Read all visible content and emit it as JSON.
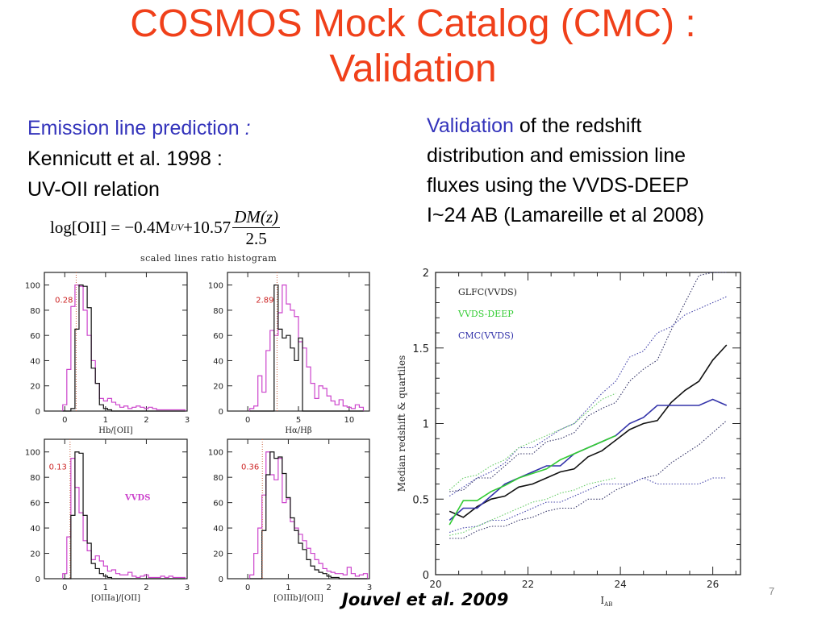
{
  "title": {
    "line1": "COSMOS Mock Catalog (CMC) :",
    "line2": "Validation"
  },
  "left_text": {
    "heading": "Emission line prediction",
    "heading_colon": " :",
    "line2": "Kennicutt et al. 1998 :",
    "line3": "UV-OII relation"
  },
  "formula": {
    "lhs": "log[OII] = −0.4M",
    "sub": "UV",
    "mid": " +10.57",
    "numerator": "DM(z)",
    "denominator": "2.5"
  },
  "right_text": {
    "highlight": "Validation",
    "line1_rest": " of the redshift",
    "line2": "distribution and emission line",
    "line3": "fluxes using the VVDS-DEEP",
    "line4": "I~24 AB (Lamareille et al 2008)"
  },
  "histogram_title": "scaled lines ratio histogram",
  "citation": "Jouvel et al. 2009",
  "page_number": "7",
  "colors": {
    "title": "#f0401a",
    "accent_blue": "#3333bb",
    "vvds_magenta": "#cc44cc",
    "cmc_black": "#111111",
    "ratio_label": "#cc2222",
    "green": "#33cc33",
    "blue": "#3333aa"
  },
  "chart_data": [
    {
      "type": "bar",
      "title": "",
      "xlabel": "Hb/[OII]",
      "ylabel": "",
      "xlim": [
        -0.5,
        3
      ],
      "ylim": [
        0,
        110
      ],
      "xticks": [
        "0",
        "1",
        "2",
        "3"
      ],
      "yticks": [
        "0",
        "20",
        "40",
        "60",
        "80",
        "100"
      ],
      "annotation": "0.28",
      "marker_x": 0.28,
      "bin_width": 0.1,
      "x": [
        0.0,
        0.1,
        0.2,
        0.3,
        0.4,
        0.5,
        0.6,
        0.7,
        0.8,
        0.9,
        1.0,
        1.1,
        1.2,
        1.3,
        1.4,
        1.5,
        1.6,
        1.7,
        1.8,
        1.9,
        2.0,
        2.1,
        2.2,
        2.3,
        2.4,
        2.5,
        2.6,
        2.7,
        2.8,
        2.9
      ],
      "series": [
        {
          "name": "VVDS",
          "values": [
            5,
            33,
            83,
            100,
            99,
            80,
            60,
            40,
            22,
            10,
            8,
            10,
            7,
            5,
            3,
            4,
            2,
            3,
            4,
            3,
            2,
            3,
            2,
            1,
            1,
            1,
            1,
            1,
            1,
            1
          ]
        },
        {
          "name": "CMC",
          "values": [
            0,
            0,
            2,
            65,
            100,
            99,
            82,
            34,
            22,
            5,
            2,
            1,
            0,
            0,
            0,
            0,
            0,
            0,
            0,
            0,
            0,
            0,
            0,
            0,
            0,
            0,
            0,
            0,
            0,
            0
          ]
        }
      ]
    },
    {
      "type": "bar",
      "title": "",
      "xlabel": "Hα/Hβ",
      "ylabel": "",
      "xlim": [
        -2,
        12
      ],
      "ylim": [
        0,
        110
      ],
      "xticks": [
        "0",
        "5",
        "10"
      ],
      "yticks": [
        "0",
        "20",
        "40",
        "60",
        "80",
        "100"
      ],
      "annotation": "2.89",
      "marker_x": 2.89,
      "bin_width": 0.4,
      "x": [
        0.4,
        0.8,
        1.2,
        1.6,
        2.0,
        2.4,
        2.8,
        3.2,
        3.6,
        4.0,
        4.4,
        4.8,
        5.2,
        5.6,
        6.0,
        6.4,
        6.8,
        7.2,
        7.6,
        8.0,
        8.4,
        8.8,
        9.2,
        9.6,
        10.0,
        10.4,
        10.8,
        11.2
      ],
      "series": [
        {
          "name": "VVDS",
          "values": [
            2,
            4,
            28,
            15,
            48,
            64,
            60,
            78,
            100,
            85,
            80,
            75,
            55,
            50,
            35,
            22,
            10,
            20,
            18,
            12,
            8,
            5,
            9,
            4,
            3,
            2,
            5,
            3
          ]
        },
        {
          "name": "CMC",
          "values": [
            0,
            0,
            0,
            0,
            0,
            0,
            100,
            65,
            58,
            60,
            50,
            40,
            58,
            0,
            0,
            0,
            0,
            0,
            0,
            0,
            0,
            0,
            0,
            0,
            0,
            0,
            0,
            0
          ]
        }
      ]
    },
    {
      "type": "bar",
      "title": "",
      "xlabel": "[OIIIa]/[OII]",
      "ylabel": "",
      "xlim": [
        -0.5,
        3
      ],
      "ylim": [
        0,
        110
      ],
      "xticks": [
        "0",
        "1",
        "2",
        "3"
      ],
      "yticks": [
        "0",
        "20",
        "40",
        "60",
        "80",
        "100"
      ],
      "annotation": "0.13",
      "legend_label": "VVDS",
      "marker_x": 0.13,
      "bin_width": 0.1,
      "x": [
        0.0,
        0.1,
        0.2,
        0.3,
        0.4,
        0.5,
        0.6,
        0.7,
        0.8,
        0.9,
        1.0,
        1.1,
        1.2,
        1.3,
        1.4,
        1.5,
        1.6,
        1.7,
        1.8,
        1.9,
        2.0,
        2.1,
        2.2,
        2.3,
        2.4,
        2.5,
        2.6,
        2.7,
        2.8,
        2.9
      ],
      "series": [
        {
          "name": "VVDS",
          "values": [
            4,
            33,
            95,
            72,
            52,
            30,
            22,
            15,
            18,
            14,
            10,
            6,
            7,
            4,
            3,
            3,
            5,
            2,
            1,
            2,
            3,
            1,
            1,
            1,
            2,
            1,
            2,
            1,
            1,
            1
          ]
        },
        {
          "name": "CMC",
          "values": [
            0,
            0,
            50,
            100,
            99,
            50,
            28,
            12,
            8,
            4,
            2,
            1,
            0,
            0,
            0,
            0,
            0,
            0,
            0,
            0,
            0,
            0,
            0,
            0,
            0,
            0,
            0,
            0,
            0,
            0
          ]
        }
      ]
    },
    {
      "type": "bar",
      "title": "",
      "xlabel": "[OIIIb]/[OII]",
      "ylabel": "",
      "xlim": [
        -0.5,
        3
      ],
      "ylim": [
        0,
        110
      ],
      "xticks": [
        "0",
        "1",
        "2",
        "3"
      ],
      "yticks": [
        "0",
        "20",
        "40",
        "60",
        "80",
        "100"
      ],
      "annotation": "0.36",
      "marker_x": 0.36,
      "bin_width": 0.1,
      "x": [
        0.1,
        0.2,
        0.3,
        0.4,
        0.5,
        0.6,
        0.7,
        0.8,
        0.9,
        1.0,
        1.1,
        1.2,
        1.3,
        1.4,
        1.5,
        1.6,
        1.7,
        1.8,
        1.9,
        2.0,
        2.1,
        2.2,
        2.3,
        2.4,
        2.5,
        2.6,
        2.7,
        2.8,
        2.9
      ],
      "series": [
        {
          "name": "VVDS",
          "values": [
            3,
            20,
            40,
            66,
            100,
            82,
            78,
            95,
            60,
            63,
            45,
            40,
            35,
            30,
            24,
            20,
            15,
            12,
            8,
            6,
            5,
            4,
            4,
            3,
            9,
            4,
            2,
            3,
            4
          ]
        },
        {
          "name": "CMC",
          "values": [
            0,
            0,
            0,
            38,
            82,
            100,
            95,
            96,
            83,
            64,
            48,
            38,
            28,
            23,
            15,
            10,
            7,
            5,
            4,
            2,
            1,
            1,
            0,
            0,
            0,
            0,
            0,
            0,
            0
          ]
        }
      ]
    },
    {
      "type": "line",
      "title": "",
      "xlabel": "I_AB",
      "ylabel": "Median redshift & quartiles",
      "xlim": [
        20,
        26.6
      ],
      "ylim": [
        0,
        2
      ],
      "xticks": [
        "20",
        "22",
        "24",
        "26"
      ],
      "yticks": [
        "0",
        "0.5",
        "1",
        "1.5",
        "2"
      ],
      "legend": [
        "GLFC(VVDS)",
        "VVDS-DEEP",
        "CMC(VVDS)"
      ],
      "legend_position": "top-left",
      "x": [
        20.3,
        20.6,
        20.9,
        21.2,
        21.5,
        21.8,
        22.1,
        22.4,
        22.7,
        23.0,
        23.3,
        23.6,
        23.9,
        24.2,
        24.5,
        24.8,
        25.1,
        25.4,
        25.7,
        26.0,
        26.3
      ],
      "series": [
        {
          "name": "GLFC(VVDS)",
          "style": "solid",
          "color": "#111111",
          "values": [
            0.42,
            0.38,
            0.45,
            0.5,
            0.52,
            0.58,
            0.6,
            0.64,
            0.68,
            0.7,
            0.78,
            0.82,
            0.89,
            0.96,
            1.0,
            1.02,
            1.14,
            1.22,
            1.28,
            1.42,
            1.52
          ]
        },
        {
          "name": "CMC(VVDS)",
          "style": "solid",
          "color": "#3333aa",
          "values": [
            0.36,
            0.44,
            0.44,
            0.52,
            0.6,
            0.64,
            0.68,
            0.72,
            0.72,
            0.8,
            0.84,
            0.88,
            0.92,
            1.0,
            1.04,
            1.12,
            1.12,
            1.12,
            1.12,
            1.16,
            1.12
          ]
        },
        {
          "name": "VVDS-DEEP",
          "style": "solid",
          "color": "#33cc33",
          "values": [
            0.33,
            0.49,
            0.49,
            0.55,
            0.59,
            0.64,
            0.67,
            0.7,
            0.76,
            0.8,
            0.84,
            0.88,
            0.92,
            null,
            null,
            null,
            null,
            null,
            null,
            null,
            null
          ]
        },
        {
          "name": "GLFC upper quartile",
          "style": "dotted",
          "color": "#333366",
          "values": [
            0.55,
            0.56,
            0.64,
            0.64,
            0.72,
            0.8,
            0.8,
            0.88,
            0.9,
            0.94,
            1.05,
            1.1,
            1.14,
            1.28,
            1.36,
            1.42,
            1.62,
            1.8,
            1.98,
            2.1,
            2.25
          ]
        },
        {
          "name": "GLFC lower quartile",
          "style": "dotted",
          "color": "#333366",
          "values": [
            0.24,
            0.24,
            0.29,
            0.32,
            0.32,
            0.36,
            0.38,
            0.42,
            0.44,
            0.44,
            0.5,
            0.5,
            0.56,
            0.6,
            0.64,
            0.66,
            0.74,
            0.8,
            0.86,
            0.94,
            1.02
          ]
        },
        {
          "name": "CMC upper quartile",
          "style": "dotted",
          "color": "#4444aa",
          "values": [
            0.52,
            0.58,
            0.64,
            0.68,
            0.74,
            0.84,
            0.84,
            0.9,
            0.96,
            1.0,
            1.1,
            1.2,
            1.28,
            1.44,
            1.48,
            1.6,
            1.64,
            1.72,
            1.76,
            1.8,
            1.84
          ]
        },
        {
          "name": "CMC lower quartile",
          "style": "dotted",
          "color": "#4444aa",
          "values": [
            0.28,
            0.31,
            0.32,
            0.36,
            0.36,
            0.4,
            0.44,
            0.48,
            0.48,
            0.52,
            0.56,
            0.6,
            0.6,
            0.6,
            0.64,
            0.6,
            0.6,
            0.6,
            0.6,
            0.64,
            0.64
          ]
        },
        {
          "name": "VVDS-DEEP upper quartile",
          "style": "dotted",
          "color": "#66cc66",
          "values": [
            0.56,
            0.64,
            0.66,
            0.72,
            0.76,
            0.84,
            0.88,
            0.92,
            0.96,
            1.0,
            1.08,
            1.16,
            1.2,
            null,
            null,
            null,
            null,
            null,
            null,
            null,
            null
          ]
        },
        {
          "name": "VVDS-DEEP lower quartile",
          "style": "dotted",
          "color": "#66cc66",
          "values": [
            0.26,
            0.28,
            0.32,
            0.36,
            0.4,
            0.44,
            0.48,
            0.5,
            0.54,
            0.56,
            0.6,
            0.62,
            0.64,
            null,
            null,
            null,
            null,
            null,
            null,
            null,
            null
          ]
        }
      ]
    }
  ]
}
